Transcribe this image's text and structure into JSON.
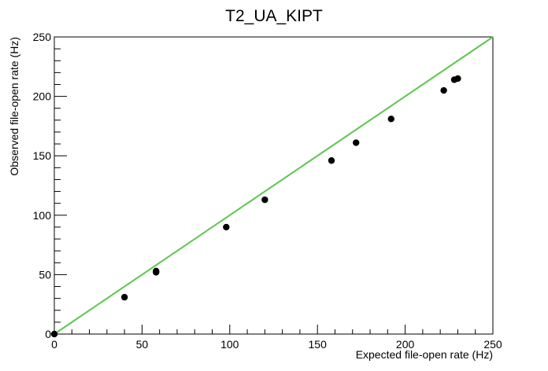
{
  "chart_data": {
    "type": "scatter",
    "title": "T2_UA_KIPT",
    "xlabel": "Expected file-open rate (Hz)",
    "ylabel": "Observed file-open rate (Hz)",
    "xlim": [
      0,
      250
    ],
    "ylim": [
      0,
      250
    ],
    "xticks": [
      0,
      50,
      100,
      150,
      200,
      250
    ],
    "yticks": [
      0,
      50,
      100,
      150,
      200,
      250
    ],
    "grid": false,
    "series": [
      {
        "type": "scatter",
        "color": "#000000",
        "points": [
          {
            "x": 0,
            "y": 0
          },
          {
            "x": 40,
            "y": 31
          },
          {
            "x": 58,
            "y": 52
          },
          {
            "x": 58,
            "y": 53
          },
          {
            "x": 98,
            "y": 90
          },
          {
            "x": 120,
            "y": 113
          },
          {
            "x": 158,
            "y": 146
          },
          {
            "x": 172,
            "y": 161
          },
          {
            "x": 192,
            "y": 181
          },
          {
            "x": 222,
            "y": 205
          },
          {
            "x": 228,
            "y": 214
          },
          {
            "x": 230,
            "y": 215
          }
        ]
      },
      {
        "type": "line",
        "color": "#5ac84a",
        "points": [
          {
            "x": 0,
            "y": 0
          },
          {
            "x": 250,
            "y": 250
          }
        ]
      }
    ]
  }
}
